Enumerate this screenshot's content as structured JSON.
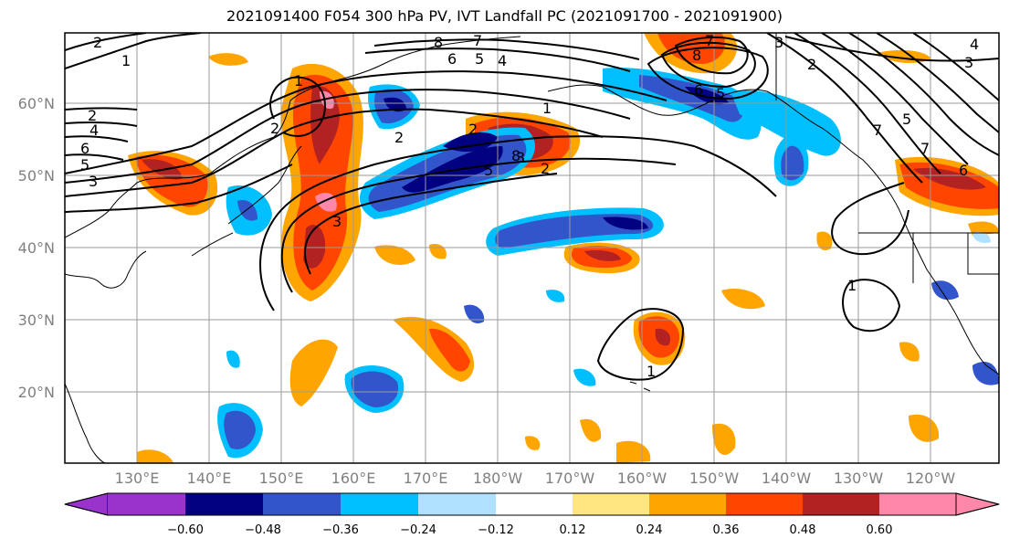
{
  "title": "2021091400 F054 300 hPa PV, IVT Landfall PC (2021091700 - 2021091900)",
  "lat_labels": [
    "60°N",
    "50°N",
    "40°N",
    "30°N",
    "20°N"
  ],
  "lon_labels": [
    "130°E",
    "140°E",
    "150°E",
    "160°E",
    "170°E",
    "180°W",
    "170°W",
    "160°W",
    "150°W",
    "140°W",
    "130°W",
    "120°W"
  ],
  "colorbar": {
    "ticks": [
      "−0.60",
      "−0.48",
      "−0.36",
      "−0.24",
      "−0.12",
      "0.12",
      "0.24",
      "0.36",
      "0.48",
      "0.60"
    ],
    "colors": [
      "#9933cc",
      "#000080",
      "#3355cc",
      "#00bfff",
      "#b0e0ff",
      "#ffffff",
      "#ffe680",
      "#ffa500",
      "#ff4500",
      "#b22222",
      "#ff88aa"
    ]
  },
  "contour_labels": [
    "2",
    "1",
    "8",
    "7",
    "6",
    "5",
    "4",
    "2",
    "1",
    "2",
    "4",
    "6",
    "5",
    "3",
    "3",
    "2",
    "2",
    "3",
    "5",
    "8",
    "7",
    "6",
    "5",
    "4",
    "3",
    "2",
    "3",
    "7",
    "5",
    "7",
    "6",
    "1",
    "1",
    "1",
    "2",
    "8"
  ]
}
